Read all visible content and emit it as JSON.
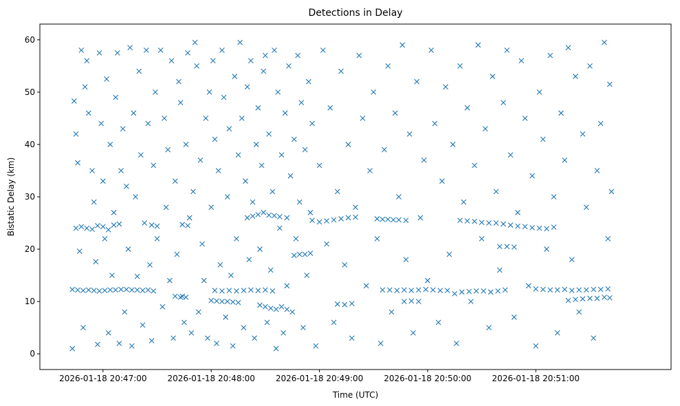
{
  "chart_data": {
    "type": "scatter",
    "title": "Detections in Delay",
    "xlabel": "Time (UTC)",
    "ylabel": "Bistatic Delay (km)",
    "marker": "x",
    "color": "#1f77b4",
    "x_units": "seconds after 2026-01-18 20:46:00",
    "xlim": [
      25,
      375
    ],
    "ylim": [
      -3,
      63
    ],
    "xticks": [
      60,
      120,
      180,
      240,
      300
    ],
    "xtick_labels": [
      "2026-01-18 20:47:00",
      "2026-01-18 20:48:00",
      "2026-01-18 20:49:00",
      "2026-01-18 20:50:00",
      "2026-01-18 20:51:00"
    ],
    "yticks": [
      0,
      10,
      20,
      30,
      40,
      50,
      60
    ],
    "ytick_labels": [
      "0",
      "10",
      "20",
      "30",
      "40",
      "50",
      "60"
    ],
    "points": [
      [
        43,
        1
      ],
      [
        44,
        48.3
      ],
      [
        45,
        42
      ],
      [
        46,
        36.5
      ],
      [
        47,
        19.6
      ],
      [
        48,
        58
      ],
      [
        49,
        5
      ],
      [
        50,
        51
      ],
      [
        51,
        56
      ],
      [
        52,
        46
      ],
      [
        54,
        35
      ],
      [
        55,
        29
      ],
      [
        56,
        17.6
      ],
      [
        57,
        1.8
      ],
      [
        58,
        57.5
      ],
      [
        59,
        44
      ],
      [
        60,
        33
      ],
      [
        61,
        22
      ],
      [
        62,
        52.5
      ],
      [
        63,
        4
      ],
      [
        64,
        40
      ],
      [
        65,
        15
      ],
      [
        66,
        27
      ],
      [
        67,
        49
      ],
      [
        68,
        57.5
      ],
      [
        69,
        2
      ],
      [
        70,
        35
      ],
      [
        71,
        43
      ],
      [
        72,
        8
      ],
      [
        73,
        32
      ],
      [
        74,
        20
      ],
      [
        75,
        58.5
      ],
      [
        76,
        1.5
      ],
      [
        77,
        46
      ],
      [
        78,
        30
      ],
      [
        79,
        14.8
      ],
      [
        80,
        54
      ],
      [
        81,
        38
      ],
      [
        82,
        5.5
      ],
      [
        83,
        25
      ],
      [
        84,
        58
      ],
      [
        85,
        44
      ],
      [
        86,
        17
      ],
      [
        87,
        2.5
      ],
      [
        88,
        36
      ],
      [
        89,
        50
      ],
      [
        90,
        22
      ],
      [
        92,
        58
      ],
      [
        93,
        9
      ],
      [
        94,
        45
      ],
      [
        95,
        28
      ],
      [
        96,
        39
      ],
      [
        97,
        14
      ],
      [
        98,
        56
      ],
      [
        99,
        3
      ],
      [
        100,
        33
      ],
      [
        101,
        19
      ],
      [
        102,
        52
      ],
      [
        103,
        48
      ],
      [
        104,
        11
      ],
      [
        105,
        6
      ],
      [
        106,
        40
      ],
      [
        107,
        57.5
      ],
      [
        108,
        26
      ],
      [
        109,
        4
      ],
      [
        110,
        31
      ],
      [
        111,
        59.5
      ],
      [
        112,
        55
      ],
      [
        113,
        8
      ],
      [
        114,
        37
      ],
      [
        115,
        21
      ],
      [
        116,
        14
      ],
      [
        117,
        45
      ],
      [
        118,
        3
      ],
      [
        119,
        50
      ],
      [
        120,
        28
      ],
      [
        121,
        56
      ],
      [
        122,
        41
      ],
      [
        123,
        2
      ],
      [
        124,
        35
      ],
      [
        125,
        17
      ],
      [
        126,
        58
      ],
      [
        127,
        49
      ],
      [
        128,
        7
      ],
      [
        129,
        30
      ],
      [
        130,
        43
      ],
      [
        131,
        15
      ],
      [
        132,
        1.5
      ],
      [
        133,
        53
      ],
      [
        134,
        22
      ],
      [
        135,
        38
      ],
      [
        136,
        59.5
      ],
      [
        137,
        45
      ],
      [
        138,
        5
      ],
      [
        139,
        33
      ],
      [
        140,
        51
      ],
      [
        141,
        18
      ],
      [
        142,
        56
      ],
      [
        143,
        29
      ],
      [
        144,
        3
      ],
      [
        145,
        40
      ],
      [
        146,
        47
      ],
      [
        147,
        20
      ],
      [
        148,
        36
      ],
      [
        149,
        54
      ],
      [
        150,
        57
      ],
      [
        151,
        6
      ],
      [
        152,
        42
      ],
      [
        153,
        16
      ],
      [
        154,
        31
      ],
      [
        155,
        58
      ],
      [
        156,
        1
      ],
      [
        157,
        50
      ],
      [
        158,
        24
      ],
      [
        159,
        38
      ],
      [
        160,
        4
      ],
      [
        161,
        46
      ],
      [
        162,
        13
      ],
      [
        163,
        55
      ],
      [
        164,
        34
      ],
      [
        165,
        8
      ],
      [
        166,
        41
      ],
      [
        167,
        22
      ],
      [
        168,
        57
      ],
      [
        169,
        29
      ],
      [
        170,
        48
      ],
      [
        171,
        5
      ],
      [
        172,
        39
      ],
      [
        173,
        15
      ],
      [
        174,
        52
      ],
      [
        175,
        27
      ],
      [
        176,
        44
      ],
      [
        178,
        1.5
      ],
      [
        180,
        36
      ],
      [
        182,
        58
      ],
      [
        184,
        21
      ],
      [
        186,
        47
      ],
      [
        188,
        6
      ],
      [
        190,
        31
      ],
      [
        192,
        54
      ],
      [
        194,
        17
      ],
      [
        196,
        40
      ],
      [
        198,
        3
      ],
      [
        200,
        28
      ],
      [
        202,
        57
      ],
      [
        204,
        45
      ],
      [
        206,
        13
      ],
      [
        208,
        35
      ],
      [
        210,
        50
      ],
      [
        212,
        22
      ],
      [
        214,
        2
      ],
      [
        216,
        39
      ],
      [
        218,
        55
      ],
      [
        220,
        8
      ],
      [
        222,
        46
      ],
      [
        224,
        30
      ],
      [
        226,
        59
      ],
      [
        228,
        18
      ],
      [
        230,
        42
      ],
      [
        232,
        4
      ],
      [
        234,
        52
      ],
      [
        236,
        26
      ],
      [
        238,
        37
      ],
      [
        240,
        14
      ],
      [
        242,
        58
      ],
      [
        244,
        44
      ],
      [
        246,
        6
      ],
      [
        248,
        33
      ],
      [
        250,
        51
      ],
      [
        252,
        19
      ],
      [
        254,
        40
      ],
      [
        256,
        2
      ],
      [
        258,
        55
      ],
      [
        260,
        29
      ],
      [
        262,
        47
      ],
      [
        264,
        10
      ],
      [
        266,
        36
      ],
      [
        268,
        59
      ],
      [
        270,
        22
      ],
      [
        272,
        43
      ],
      [
        274,
        5
      ],
      [
        276,
        53
      ],
      [
        278,
        31
      ],
      [
        280,
        16
      ],
      [
        282,
        48
      ],
      [
        284,
        58
      ],
      [
        286,
        38
      ],
      [
        288,
        7
      ],
      [
        290,
        27
      ],
      [
        292,
        56
      ],
      [
        294,
        45
      ],
      [
        296,
        13
      ],
      [
        298,
        34
      ],
      [
        300,
        1.5
      ],
      [
        302,
        50
      ],
      [
        304,
        41
      ],
      [
        306,
        20
      ],
      [
        308,
        57
      ],
      [
        310,
        30
      ],
      [
        312,
        4
      ],
      [
        314,
        46
      ],
      [
        316,
        37
      ],
      [
        318,
        58.5
      ],
      [
        320,
        18
      ],
      [
        322,
        53
      ],
      [
        324,
        8
      ],
      [
        326,
        42
      ],
      [
        328,
        28
      ],
      [
        330,
        55
      ],
      [
        332,
        3
      ],
      [
        334,
        35
      ],
      [
        336,
        44
      ],
      [
        338,
        59.5
      ],
      [
        340,
        22
      ],
      [
        341,
        51.5
      ],
      [
        342,
        31
      ],
      [
        43,
        12.3
      ],
      [
        46,
        12.2
      ],
      [
        49,
        12.1
      ],
      [
        52,
        12.2
      ],
      [
        55,
        12.1
      ],
      [
        58,
        12
      ],
      [
        61,
        12.1
      ],
      [
        64,
        12.2
      ],
      [
        67,
        12.2
      ],
      [
        70,
        12.3
      ],
      [
        73,
        12.3
      ],
      [
        76,
        12.2
      ],
      [
        79,
        12.2
      ],
      [
        82,
        12.1
      ],
      [
        85,
        12.2
      ],
      [
        88,
        12
      ],
      [
        122,
        12.1
      ],
      [
        126,
        12
      ],
      [
        130,
        12.1
      ],
      [
        134,
        12
      ],
      [
        138,
        12.1
      ],
      [
        142,
        12.2
      ],
      [
        146,
        12.1
      ],
      [
        150,
        12.2
      ],
      [
        154,
        12
      ],
      [
        215,
        12.2
      ],
      [
        219,
        12.2
      ],
      [
        223,
        12.1
      ],
      [
        227,
        12.2
      ],
      [
        231,
        12.1
      ],
      [
        235,
        12.2
      ],
      [
        239,
        12.3
      ],
      [
        243,
        12.2
      ],
      [
        247,
        12.1
      ],
      [
        251,
        12.1
      ],
      [
        255,
        11.5
      ],
      [
        259,
        11.8
      ],
      [
        263,
        11.9
      ],
      [
        267,
        12
      ],
      [
        271,
        12
      ],
      [
        275,
        11.8
      ],
      [
        279,
        12
      ],
      [
        283,
        12.2
      ],
      [
        300,
        12.4
      ],
      [
        304,
        12.3
      ],
      [
        308,
        12.2
      ],
      [
        312,
        12.2
      ],
      [
        316,
        12.3
      ],
      [
        320,
        12.1
      ],
      [
        324,
        12.2
      ],
      [
        328,
        12.2
      ],
      [
        332,
        12.3
      ],
      [
        336,
        12.3
      ],
      [
        340,
        12.4
      ],
      [
        45,
        24
      ],
      [
        48,
        24.3
      ],
      [
        51,
        24
      ],
      [
        54,
        23.8
      ],
      [
        57,
        24.5
      ],
      [
        60,
        24.3
      ],
      [
        63,
        23.7
      ],
      [
        66,
        24.6
      ],
      [
        69,
        24.8
      ],
      [
        87,
        24.6
      ],
      [
        90,
        24.4
      ],
      [
        104,
        24.7
      ],
      [
        107,
        24.5
      ],
      [
        140,
        26
      ],
      [
        143,
        26.3
      ],
      [
        146,
        26.6
      ],
      [
        149,
        27
      ],
      [
        152,
        26.5
      ],
      [
        155,
        26.4
      ],
      [
        158,
        26.2
      ],
      [
        162,
        26
      ],
      [
        176,
        25.5
      ],
      [
        180,
        25.2
      ],
      [
        184,
        25.4
      ],
      [
        188,
        25.6
      ],
      [
        192,
        25.8
      ],
      [
        196,
        26
      ],
      [
        200,
        26.1
      ],
      [
        212,
        25.8
      ],
      [
        215,
        25.7
      ],
      [
        218,
        25.7
      ],
      [
        221,
        25.6
      ],
      [
        224,
        25.6
      ],
      [
        228,
        25.5
      ],
      [
        258,
        25.5
      ],
      [
        262,
        25.4
      ],
      [
        266,
        25.3
      ],
      [
        270,
        25.1
      ],
      [
        274,
        25
      ],
      [
        278,
        25
      ],
      [
        282,
        24.8
      ],
      [
        286,
        24.6
      ],
      [
        290,
        24.4
      ],
      [
        294,
        24.3
      ],
      [
        298,
        24.1
      ],
      [
        302,
        24
      ],
      [
        306,
        23.9
      ],
      [
        310,
        24.2
      ],
      [
        120,
        10.2
      ],
      [
        123,
        10.1
      ],
      [
        126,
        10
      ],
      [
        129,
        10
      ],
      [
        132,
        9.9
      ],
      [
        135,
        9.8
      ],
      [
        100,
        11
      ],
      [
        103,
        10.8
      ],
      [
        106,
        10.8
      ],
      [
        147,
        9.3
      ],
      [
        150,
        9
      ],
      [
        153,
        8.7
      ],
      [
        156,
        8.5
      ],
      [
        159,
        9
      ],
      [
        162,
        8.5
      ],
      [
        190,
        9.5
      ],
      [
        194,
        9.4
      ],
      [
        198,
        9.6
      ],
      [
        227,
        10
      ],
      [
        231,
        10.1
      ],
      [
        235,
        10
      ],
      [
        318,
        10.2
      ],
      [
        322,
        10.4
      ],
      [
        326,
        10.5
      ],
      [
        330,
        10.6
      ],
      [
        334,
        10.6
      ],
      [
        338,
        10.8
      ],
      [
        341,
        10.7
      ],
      [
        166,
        18.8
      ],
      [
        169,
        19
      ],
      [
        172,
        19
      ],
      [
        175,
        19.2
      ],
      [
        280,
        20.5
      ],
      [
        284,
        20.5
      ],
      [
        288,
        20.4
      ]
    ]
  }
}
